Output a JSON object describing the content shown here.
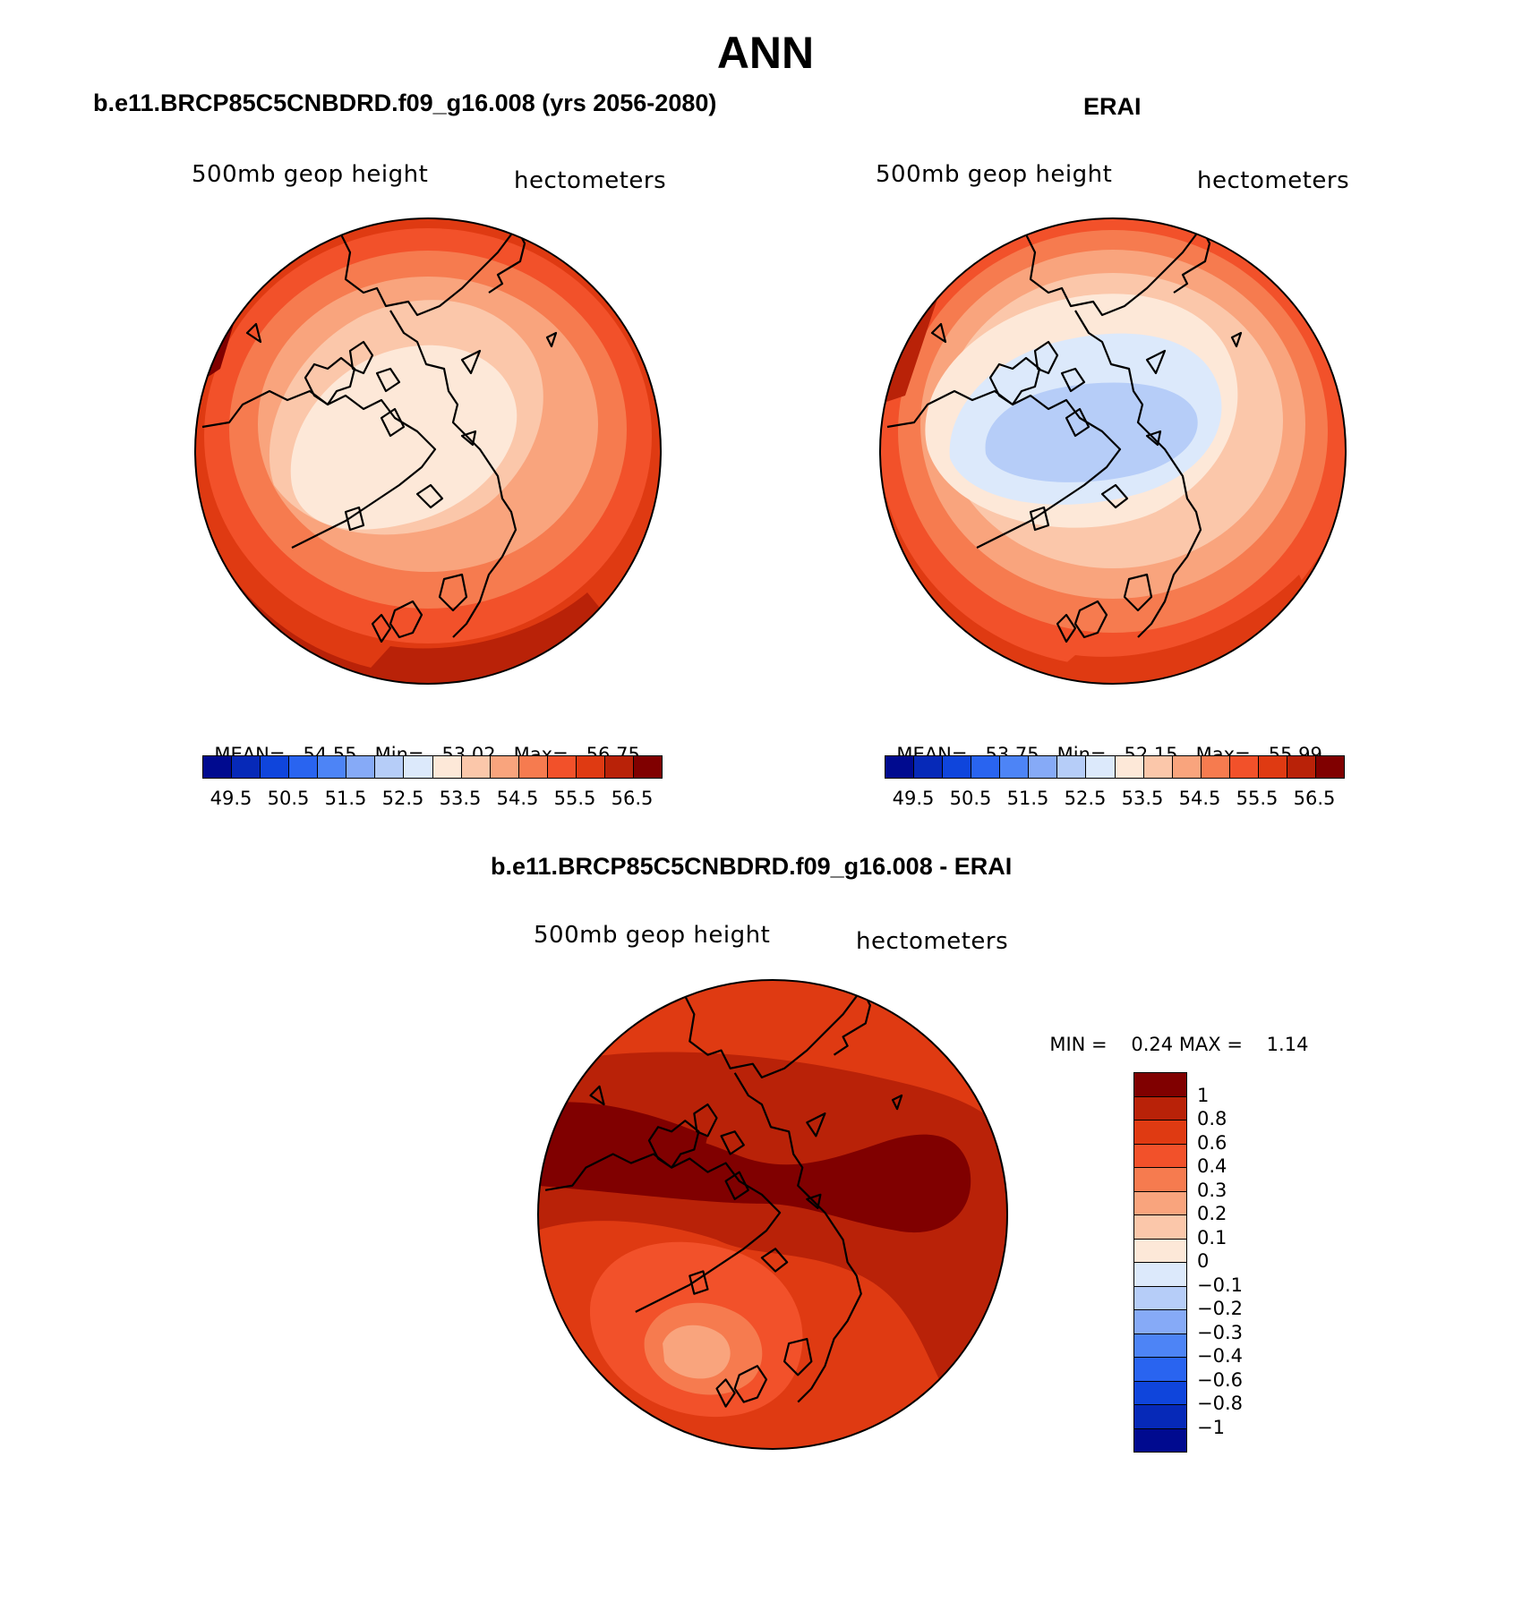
{
  "title": "ANN",
  "panels": {
    "left": {
      "title": "b.e11.BRCP85C5CNBDRD.f09_g16.008 (yrs 2056-2080)",
      "variable": "500mb geop height",
      "units": "hectometers",
      "mean_label": "MEAN=",
      "mean": "54.55",
      "min_label": "Min=",
      "min": "53.02",
      "max_label": "Max=",
      "max": "56.75"
    },
    "right": {
      "title": "ERAI",
      "variable": "500mb geop height",
      "units": "hectometers",
      "mean_label": "MEAN=",
      "mean": "53.75",
      "min_label": "Min=",
      "min": "52.15",
      "max_label": "Max=",
      "max": "55.99"
    },
    "diff": {
      "title": "b.e11.BRCP85C5CNBDRD.f09_g16.008 - ERAI",
      "variable": "500mb geop height",
      "units": "hectometers",
      "min_label": "MIN =",
      "min": "0.24",
      "max_label": "MAX =",
      "max": "1.14"
    }
  },
  "colorbar_abs": {
    "colors": [
      "#000a8f",
      "#0629b8",
      "#0f45dc",
      "#2964f0",
      "#4d84f6",
      "#86aaf7",
      "#b6cdf8",
      "#dce9fb",
      "#fde8d8",
      "#fbc7aa",
      "#f9a47d",
      "#f67b4f",
      "#f2512a",
      "#df3a12",
      "#b92208",
      "#800000"
    ],
    "tick_labels": [
      "49.5",
      "50.5",
      "51.5",
      "52.5",
      "53.5",
      "54.5",
      "55.5",
      "56.5"
    ]
  },
  "colorbar_diff": {
    "colors": [
      "#800000",
      "#b92208",
      "#df3a12",
      "#f2512a",
      "#f67b4f",
      "#f9a47d",
      "#fbc7aa",
      "#fde8d8",
      "#dce9fb",
      "#b6cdf8",
      "#86aaf7",
      "#4d84f6",
      "#2964f0",
      "#0f45dc",
      "#0629b8",
      "#000a8f"
    ],
    "tick_labels": [
      "1",
      "0.8",
      "0.6",
      "0.4",
      "0.3",
      "0.2",
      "0.1",
      "0",
      "−0.1",
      "−0.2",
      "−0.3",
      "−0.4",
      "−0.6",
      "−0.8",
      "−1"
    ]
  }
}
